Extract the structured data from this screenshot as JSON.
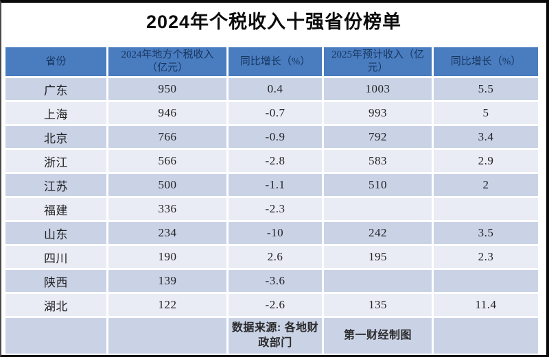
{
  "title": "2024年个税收入十强省份榜单",
  "table": {
    "headers": [
      "省份",
      "2024年地方个税收入（亿元）",
      "同比增长（%）",
      "2025年预计收入（亿元）",
      "同比增长（%）"
    ],
    "rows": [
      [
        "广东",
        "950",
        "0.4",
        "1003",
        "5.5"
      ],
      [
        "上海",
        "946",
        "-0.7",
        "993",
        "5"
      ],
      [
        "北京",
        "766",
        "-0.9",
        "792",
        "3.4"
      ],
      [
        "浙江",
        "566",
        "-2.8",
        "583",
        "2.9"
      ],
      [
        "江苏",
        "500",
        "-1.1",
        "510",
        "2"
      ],
      [
        "福建",
        "336",
        "-2.3",
        "",
        ""
      ],
      [
        "山东",
        "234",
        "-10",
        "242",
        "3.5"
      ],
      [
        "四川",
        "190",
        "2.6",
        "195",
        "2.3"
      ],
      [
        "陕西",
        "139",
        "-3.6",
        "",
        ""
      ],
      [
        "湖北",
        "122",
        "-2.6",
        "135",
        "11.4"
      ]
    ],
    "footer": {
      "source": "数据来源: 各地财政部门",
      "credit": "第一财经制图"
    }
  },
  "colors": {
    "header_bg": "#4a7cc0",
    "header_text": "#17375e",
    "row_dark": "#cad2e6",
    "row_light": "#e9ecf5",
    "body_text": "#222222",
    "title_text": "#0c0c0c",
    "frame_border": "#0a0a0a"
  },
  "chart_data": {
    "type": "table",
    "title": "2024年个税收入十强省份榜单",
    "columns": [
      "省份",
      "2024年地方个税收入（亿元）",
      "同比增长（%）",
      "2025年预计收入（亿元）",
      "同比增长（%）"
    ],
    "rows": [
      [
        "广东",
        950,
        0.4,
        1003,
        5.5
      ],
      [
        "上海",
        946,
        -0.7,
        993,
        5
      ],
      [
        "北京",
        766,
        -0.9,
        792,
        3.4
      ],
      [
        "浙江",
        566,
        -2.8,
        583,
        2.9
      ],
      [
        "江苏",
        500,
        -1.1,
        510,
        2
      ],
      [
        "福建",
        336,
        -2.3,
        null,
        null
      ],
      [
        "山东",
        234,
        -10,
        242,
        3.5
      ],
      [
        "四川",
        190,
        2.6,
        195,
        2.3
      ],
      [
        "陕西",
        139,
        -3.6,
        null,
        null
      ],
      [
        "湖北",
        122,
        -2.6,
        135,
        11.4
      ]
    ],
    "source": "数据来源: 各地财政部门",
    "credit": "第一财经制图"
  }
}
